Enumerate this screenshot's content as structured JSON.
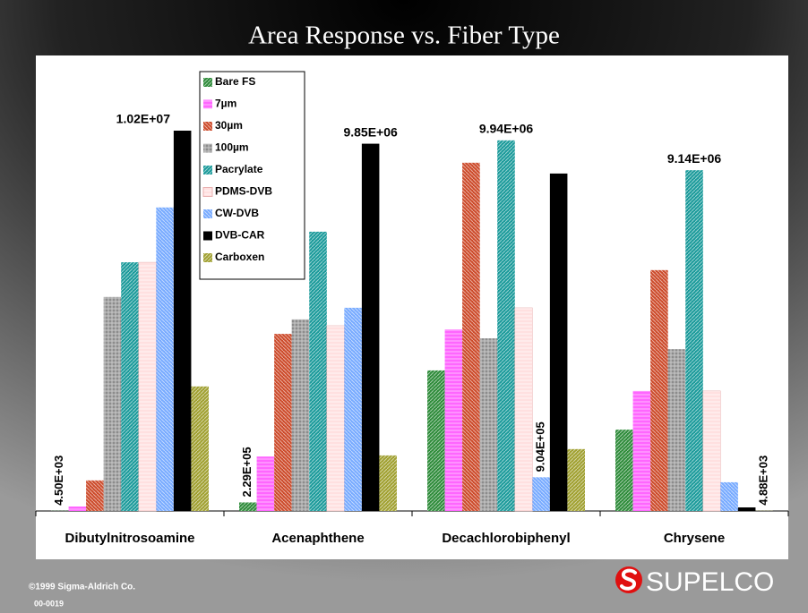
{
  "chart_data": {
    "type": "bar",
    "title": "Area Response vs. Fiber Type",
    "categories": [
      "Dibutylnitrosoamine",
      "Acenaphthene",
      "Decachlorobiphenyl",
      "Chrysene"
    ],
    "series": [
      {
        "name": "Bare FS",
        "color": "#2e8b3a",
        "values": [
          4500,
          229000,
          3770000,
          2180000
        ],
        "value_labels": [
          "4.50E+03",
          "2.29E+05",
          null,
          null
        ]
      },
      {
        "name": "7µm",
        "color": "#ff66ff",
        "values": [
          120000,
          1460000,
          4870000,
          3220000
        ]
      },
      {
        "name": "30µm",
        "color": "#cc4a2a",
        "values": [
          820000,
          4750000,
          9340000,
          6460000
        ]
      },
      {
        "name": "100µm",
        "color": "#8c8c8c",
        "values": [
          5740000,
          5140000,
          4630000,
          4340000
        ]
      },
      {
        "name": "Pacrylate",
        "color": "#1a9a9a",
        "values": [
          6670000,
          7490000,
          9940000,
          9140000
        ],
        "value_labels": [
          null,
          null,
          "9.94E+06",
          "9.14E+06"
        ]
      },
      {
        "name": "PDMS-DVB",
        "color": "#ffe0e0",
        "values": [
          6670000,
          4970000,
          5450000,
          3220000
        ]
      },
      {
        "name": "CW-DVB",
        "color": "#77aaff",
        "values": [
          8140000,
          5450000,
          904000,
          770000
        ],
        "value_labels": [
          null,
          null,
          "9.04E+05",
          null
        ]
      },
      {
        "name": "DVB-CAR",
        "color": "#000000",
        "values": [
          10200000,
          9850000,
          9050000,
          96000
        ],
        "value_labels": [
          "1.02E+07",
          "9.85E+06",
          null,
          null
        ]
      },
      {
        "name": "Carboxen",
        "color": "#a0a030",
        "values": [
          3340000,
          1490000,
          1660000,
          4880
        ],
        "value_labels": [
          null,
          null,
          null,
          "4.88E+03"
        ]
      }
    ],
    "legend": "top-left"
  },
  "footer": {
    "copyright": "©1999 Sigma-Aldrich Co.",
    "code": "00-0019",
    "logo": "SUPELCO"
  }
}
